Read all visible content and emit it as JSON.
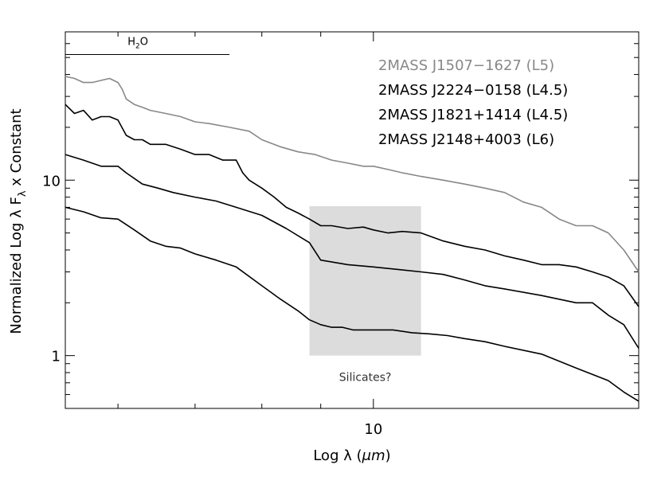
{
  "chart_data": {
    "type": "line",
    "xscale": "log",
    "yscale": "log",
    "xlim": [
      5.4,
      17.0
    ],
    "ylim": [
      0.5,
      70
    ],
    "xlabel_main": "Log λ (",
    "xlabel_unit": "μm",
    "xlabel_close": ")",
    "ylabel_pre": "Normalized Log λ F",
    "ylabel_sub": "λ",
    "ylabel_post": " x  Constant",
    "xticks": [
      {
        "value": 10,
        "label": "10"
      }
    ],
    "yticks": [
      {
        "value": 1,
        "label": "1"
      },
      {
        "value": 10,
        "label": "10"
      }
    ],
    "grid": false,
    "legend_position": "top-right",
    "h2o_band": {
      "label_main": "H",
      "label_sub": "2",
      "label_end": "O",
      "x_start": 5.4,
      "x_end": 7.5,
      "y": 52
    },
    "shaded_region": {
      "label": "Silicates?",
      "x_start": 8.8,
      "x_end": 11.0,
      "y_start": 1.0,
      "y_end": 7.1,
      "color": "#dcdcdc"
    },
    "series": [
      {
        "name": "2MASS J1507−1627 (L5)",
        "color": "#888888",
        "points": [
          [
            5.4,
            39
          ],
          [
            5.5,
            38
          ],
          [
            5.6,
            36
          ],
          [
            5.7,
            36
          ],
          [
            5.8,
            37
          ],
          [
            5.9,
            38
          ],
          [
            6.0,
            36
          ],
          [
            6.05,
            33
          ],
          [
            6.1,
            29
          ],
          [
            6.2,
            27
          ],
          [
            6.3,
            26
          ],
          [
            6.4,
            25
          ],
          [
            6.6,
            24
          ],
          [
            6.8,
            23
          ],
          [
            7.0,
            21.5
          ],
          [
            7.2,
            21
          ],
          [
            7.5,
            20
          ],
          [
            7.8,
            19
          ],
          [
            8.0,
            17
          ],
          [
            8.3,
            15.5
          ],
          [
            8.6,
            14.5
          ],
          [
            8.9,
            14
          ],
          [
            9.2,
            13
          ],
          [
            9.5,
            12.5
          ],
          [
            9.8,
            12
          ],
          [
            10.0,
            12
          ],
          [
            10.3,
            11.5
          ],
          [
            10.6,
            11
          ],
          [
            11.0,
            10.5
          ],
          [
            11.5,
            10
          ],
          [
            12.0,
            9.5
          ],
          [
            12.5,
            9
          ],
          [
            13.0,
            8.5
          ],
          [
            13.5,
            7.5
          ],
          [
            14.0,
            7
          ],
          [
            14.5,
            6
          ],
          [
            15.0,
            5.5
          ],
          [
            15.5,
            5.5
          ],
          [
            16.0,
            5
          ],
          [
            16.5,
            4
          ],
          [
            17.0,
            3
          ]
        ]
      },
      {
        "name": "2MASS J2224−0158 (L4.5)",
        "color": "#000000",
        "points": [
          [
            5.4,
            27
          ],
          [
            5.5,
            24
          ],
          [
            5.6,
            25
          ],
          [
            5.7,
            22
          ],
          [
            5.8,
            23
          ],
          [
            5.9,
            23
          ],
          [
            6.0,
            22
          ],
          [
            6.1,
            18
          ],
          [
            6.2,
            17
          ],
          [
            6.3,
            17
          ],
          [
            6.4,
            16
          ],
          [
            6.6,
            16
          ],
          [
            6.8,
            15
          ],
          [
            7.0,
            14
          ],
          [
            7.2,
            14
          ],
          [
            7.4,
            13
          ],
          [
            7.6,
            13
          ],
          [
            7.7,
            11
          ],
          [
            7.8,
            10
          ],
          [
            8.0,
            9
          ],
          [
            8.2,
            8
          ],
          [
            8.4,
            7
          ],
          [
            8.6,
            6.5
          ],
          [
            8.8,
            6
          ],
          [
            9.0,
            5.5
          ],
          [
            9.2,
            5.5
          ],
          [
            9.5,
            5.3
          ],
          [
            9.8,
            5.4
          ],
          [
            10.0,
            5.2
          ],
          [
            10.3,
            5.0
          ],
          [
            10.6,
            5.1
          ],
          [
            11.0,
            5.0
          ],
          [
            11.5,
            4.5
          ],
          [
            12.0,
            4.2
          ],
          [
            12.5,
            4.0
          ],
          [
            13.0,
            3.7
          ],
          [
            13.5,
            3.5
          ],
          [
            14.0,
            3.3
          ],
          [
            14.5,
            3.3
          ],
          [
            15.0,
            3.2
          ],
          [
            15.5,
            3.0
          ],
          [
            16.0,
            2.8
          ],
          [
            16.5,
            2.5
          ],
          [
            17.0,
            1.9
          ]
        ]
      },
      {
        "name": "2MASS J1821+1414 (L4.5)",
        "color": "#000000",
        "points": [
          [
            5.4,
            14
          ],
          [
            5.6,
            13
          ],
          [
            5.8,
            12
          ],
          [
            6.0,
            12
          ],
          [
            6.1,
            11
          ],
          [
            6.3,
            9.5
          ],
          [
            6.5,
            9
          ],
          [
            6.7,
            8.5
          ],
          [
            7.0,
            8
          ],
          [
            7.3,
            7.6
          ],
          [
            7.6,
            7
          ],
          [
            8.0,
            6.3
          ],
          [
            8.4,
            5.3
          ],
          [
            8.8,
            4.4
          ],
          [
            9.0,
            3.5
          ],
          [
            9.5,
            3.3
          ],
          [
            10.0,
            3.2
          ],
          [
            10.5,
            3.1
          ],
          [
            11.0,
            3.0
          ],
          [
            11.5,
            2.9
          ],
          [
            12.0,
            2.7
          ],
          [
            12.5,
            2.5
          ],
          [
            13.0,
            2.4
          ],
          [
            14.0,
            2.2
          ],
          [
            15.0,
            2.0
          ],
          [
            15.5,
            2.0
          ],
          [
            16.0,
            1.7
          ],
          [
            16.5,
            1.5
          ],
          [
            17.0,
            1.1
          ]
        ]
      },
      {
        "name": "2MASS J2148+4003 (L6)",
        "color": "#000000",
        "points": [
          [
            5.4,
            7
          ],
          [
            5.6,
            6.6
          ],
          [
            5.8,
            6.1
          ],
          [
            6.0,
            6.0
          ],
          [
            6.2,
            5.2
          ],
          [
            6.4,
            4.5
          ],
          [
            6.6,
            4.2
          ],
          [
            6.8,
            4.1
          ],
          [
            7.0,
            3.8
          ],
          [
            7.3,
            3.5
          ],
          [
            7.6,
            3.2
          ],
          [
            8.0,
            2.5
          ],
          [
            8.3,
            2.1
          ],
          [
            8.6,
            1.8
          ],
          [
            8.8,
            1.6
          ],
          [
            9.0,
            1.5
          ],
          [
            9.2,
            1.45
          ],
          [
            9.4,
            1.45
          ],
          [
            9.6,
            1.4
          ],
          [
            9.8,
            1.4
          ],
          [
            10.0,
            1.4
          ],
          [
            10.4,
            1.4
          ],
          [
            10.8,
            1.35
          ],
          [
            11.2,
            1.33
          ],
          [
            11.6,
            1.3
          ],
          [
            12.0,
            1.25
          ],
          [
            12.5,
            1.2
          ],
          [
            13.0,
            1.13
          ],
          [
            14.0,
            1.02
          ],
          [
            15.0,
            0.85
          ],
          [
            16.0,
            0.72
          ],
          [
            16.5,
            0.62
          ],
          [
            17.0,
            0.55
          ]
        ]
      }
    ]
  }
}
